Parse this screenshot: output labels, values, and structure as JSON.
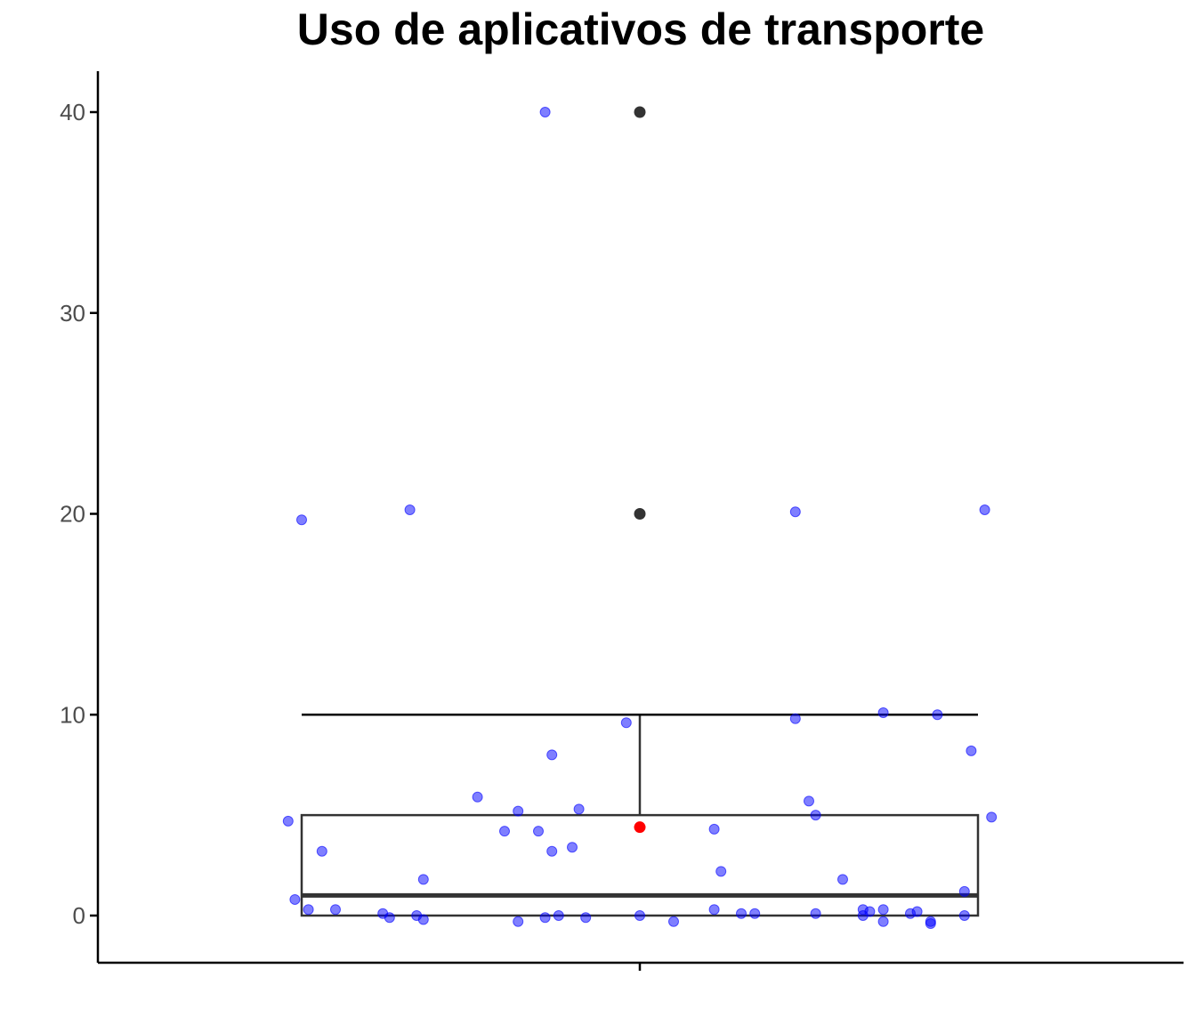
{
  "chart_data": {
    "type": "boxplot",
    "title": "Uso de aplicativos de transporte",
    "xlabel": "",
    "ylabel": "",
    "ylim": [
      -2.4,
      42
    ],
    "yticks": [
      0,
      10,
      20,
      30,
      40
    ],
    "grid": false,
    "box": {
      "min": 0,
      "q1": 0,
      "median": 1,
      "q3": 5,
      "whisker_high": 10,
      "outliers": [
        20,
        40
      ],
      "mean": 4.4
    },
    "jitter_points": [
      [
        -0.52,
        4.7
      ],
      [
        -0.51,
        0.8
      ],
      [
        -0.5,
        19.7
      ],
      [
        -0.49,
        0.3
      ],
      [
        -0.47,
        3.2
      ],
      [
        -0.45,
        0.3
      ],
      [
        -0.38,
        0.1
      ],
      [
        -0.37,
        -0.1
      ],
      [
        -0.34,
        20.2
      ],
      [
        -0.33,
        0.0
      ],
      [
        -0.32,
        -0.2
      ],
      [
        -0.32,
        1.8
      ],
      [
        -0.24,
        5.9
      ],
      [
        -0.2,
        4.2
      ],
      [
        -0.18,
        -0.3
      ],
      [
        -0.18,
        5.2
      ],
      [
        -0.15,
        4.2
      ],
      [
        -0.14,
        -0.1
      ],
      [
        -0.14,
        40.0
      ],
      [
        -0.13,
        3.2
      ],
      [
        -0.13,
        8.0
      ],
      [
        -0.12,
        0.0
      ],
      [
        -0.1,
        3.4
      ],
      [
        -0.09,
        5.3
      ],
      [
        -0.08,
        -0.1
      ],
      [
        -0.02,
        9.6
      ],
      [
        0.0,
        0.0
      ],
      [
        0.05,
        -0.3
      ],
      [
        0.11,
        0.3
      ],
      [
        0.11,
        4.3
      ],
      [
        0.12,
        2.2
      ],
      [
        0.15,
        0.1
      ],
      [
        0.17,
        0.1
      ],
      [
        0.23,
        20.1
      ],
      [
        0.23,
        9.8
      ],
      [
        0.25,
        5.7
      ],
      [
        0.26,
        0.1
      ],
      [
        0.26,
        5.0
      ],
      [
        0.3,
        1.8
      ],
      [
        0.33,
        0.3
      ],
      [
        0.33,
        0.0
      ],
      [
        0.34,
        0.2
      ],
      [
        0.36,
        0.3
      ],
      [
        0.36,
        -0.3
      ],
      [
        0.36,
        10.1
      ],
      [
        0.4,
        0.1
      ],
      [
        0.41,
        0.2
      ],
      [
        0.43,
        -0.3
      ],
      [
        0.43,
        -0.4
      ],
      [
        0.44,
        10.0
      ],
      [
        0.48,
        1.2
      ],
      [
        0.48,
        0.0
      ],
      [
        0.49,
        8.2
      ],
      [
        0.51,
        20.2
      ],
      [
        0.52,
        4.9
      ]
    ],
    "colors": {
      "points": "#0000ff",
      "box": "#333333",
      "outliers": "#333333",
      "mean": "#ff0000",
      "axes": "#000000"
    }
  }
}
